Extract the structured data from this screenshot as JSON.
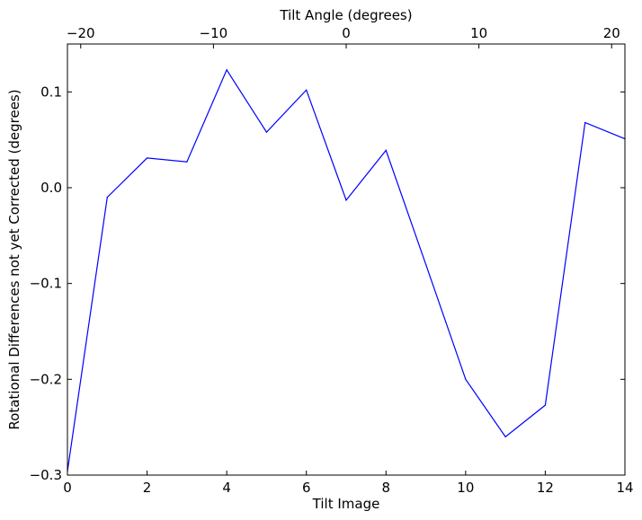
{
  "chart_data": {
    "type": "line",
    "xlabel": "Tilt Image",
    "x2label": "Tilt Angle (degrees)",
    "ylabel": "Rotational Differences not yet Corrected (degrees)",
    "xlim": [
      0,
      14
    ],
    "x2lim": [
      -21,
      21
    ],
    "ylim": [
      -0.3,
      0.15
    ],
    "x_ticks": [
      0,
      2,
      4,
      6,
      8,
      10,
      12,
      14
    ],
    "x_tick_labels": [
      "0",
      "2",
      "4",
      "6",
      "8",
      "10",
      "12",
      "14"
    ],
    "x2_ticks": [
      -20,
      -10,
      0,
      10,
      20
    ],
    "x2_tick_labels": [
      "−20",
      "−10",
      "0",
      "10",
      "20"
    ],
    "y_ticks": [
      -0.3,
      -0.2,
      -0.1,
      0.0,
      0.1
    ],
    "y_tick_labels": [
      "−0.3",
      "−0.2",
      "−0.1",
      "0.0",
      "0.1"
    ],
    "grid": false,
    "series": [
      {
        "color": "#0000ff",
        "x": [
          0,
          1,
          2,
          3,
          4,
          5,
          6,
          7,
          8,
          9,
          10,
          11,
          12,
          13,
          14
        ],
        "y": [
          -0.296,
          -0.01,
          0.031,
          0.027,
          0.123,
          0.058,
          0.102,
          -0.013,
          0.039,
          -0.08,
          -0.2,
          -0.26,
          -0.227,
          0.068,
          0.051
        ]
      }
    ]
  }
}
